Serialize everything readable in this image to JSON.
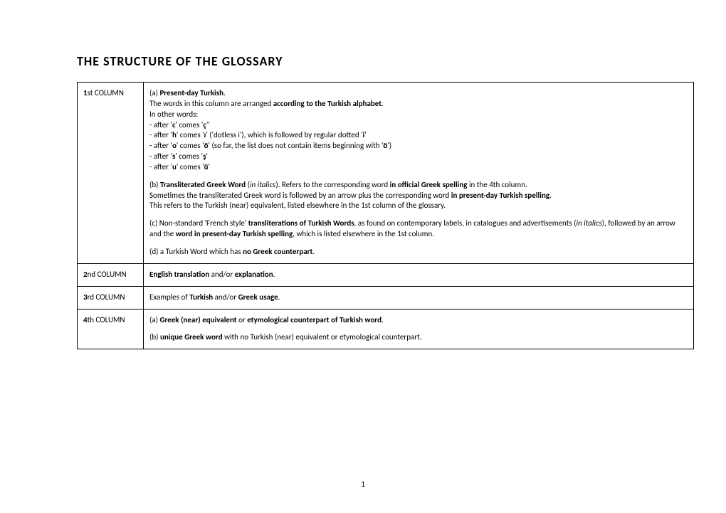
{
  "title": "THE  STRUCTURE  OF  THE  GLOSSARY",
  "page_number": "1",
  "rows": [
    {
      "col_label_ord": "1",
      "col_label_suffix": "st COLUMN"
    },
    {
      "col_label_ord": "2",
      "col_label_suffix": "nd COLUMN"
    },
    {
      "col_label_ord": "3",
      "col_label_suffix": "rd COLUMN"
    },
    {
      "col_label_ord": "4",
      "col_label_suffix": "th COLUMN"
    }
  ],
  "r1": {
    "a_label": "(a) ",
    "a_bold": "Present-day Turkish",
    "a_dot": ".",
    "a_line2_pre": "The words in this column are arranged ",
    "a_line2_bold": "according to the Turkish alphabet",
    "a_line2_dot": ".",
    "a_line3": "In other words:",
    "a_line4_pre": "- after '",
    "a_line4_b": "c",
    "a_line4_mid": "' comes '",
    "a_line4_b2": "ç",
    "a_line4_end": "''",
    "a_line5_pre": "- after '",
    "a_line5_b": "h",
    "a_line5_mid": "' comes '",
    "a_line5_b2": "ı",
    "a_line5_mid2": "' ('dotless i'), which is followed by regular dotted '",
    "a_line5_b3": "i",
    "a_line5_end": "'",
    "a_line6_pre": "- after '",
    "a_line6_b": "o",
    "a_line6_mid": "' comes '",
    "a_line6_b2": "ö",
    "a_line6_mid2": "' (so far, the list does not contain items beginning with '",
    "a_line6_b3": "ö",
    "a_line6_end": "')",
    "a_line7_pre": "- after '",
    "a_line7_b": "s",
    "a_line7_mid": "' comes '",
    "a_line7_b2": "ş",
    "a_line7_end": "'",
    "a_line8_pre": "- after '",
    "a_line8_b": "u",
    "a_line8_mid": "' comes '",
    "a_line8_b2": "ü",
    "a_line8_end": "'",
    "b_pre": "(b) ",
    "b_bold": "Transliterated Greek Word",
    "b_mid": " (",
    "b_it": "in italics",
    "b_mid2": "). Refers to the corresponding word ",
    "b_bold2": "in official Greek spelling",
    "b_end": " in the 4th column.",
    "b_line2_pre": "Sometimes the transliterated Greek word is followed by an arrow plus the corresponding word ",
    "b_line2_bold": "in present-day Turkish spelling",
    "b_line2_end": ".",
    "b_line3": "This refers to the Turkish (near) equivalent, listed elsewhere in the 1st column of the glossary.",
    "c_pre": "(c) Non-standard 'French style' ",
    "c_bold": "transliterations of Turkish Words",
    "c_mid": ", as found on contemporary labels, in catalogues and advertisements (",
    "c_it": "in italics",
    "c_mid2": "), followed by an arrow and the ",
    "c_bold2": "word in present-day Turkish spelling",
    "c_end": ", which is listed elsewhere in the 1st column.",
    "d_pre": "(d) a Turkish Word which has ",
    "d_bold": "no Greek counterpart",
    "d_end": "."
  },
  "r2": {
    "bold1": "English translation",
    "mid": " and/or ",
    "bold2": "explanation",
    "end": "."
  },
  "r3": {
    "pre": "Examples of ",
    "bold1": "Turkish",
    "mid": " and/or ",
    "bold2": "Greek usage",
    "end": "."
  },
  "r4": {
    "a_pre": "(a) ",
    "a_bold1": "Greek (near) equivalent",
    "a_mid": " or ",
    "a_bold2": "etymological counterpart of Turkish word",
    "a_end": ".",
    "b_pre": "(b) ",
    "b_bold": "unique Greek word",
    "b_end": " with no Turkish (near) equivalent or etymological counterpart."
  }
}
